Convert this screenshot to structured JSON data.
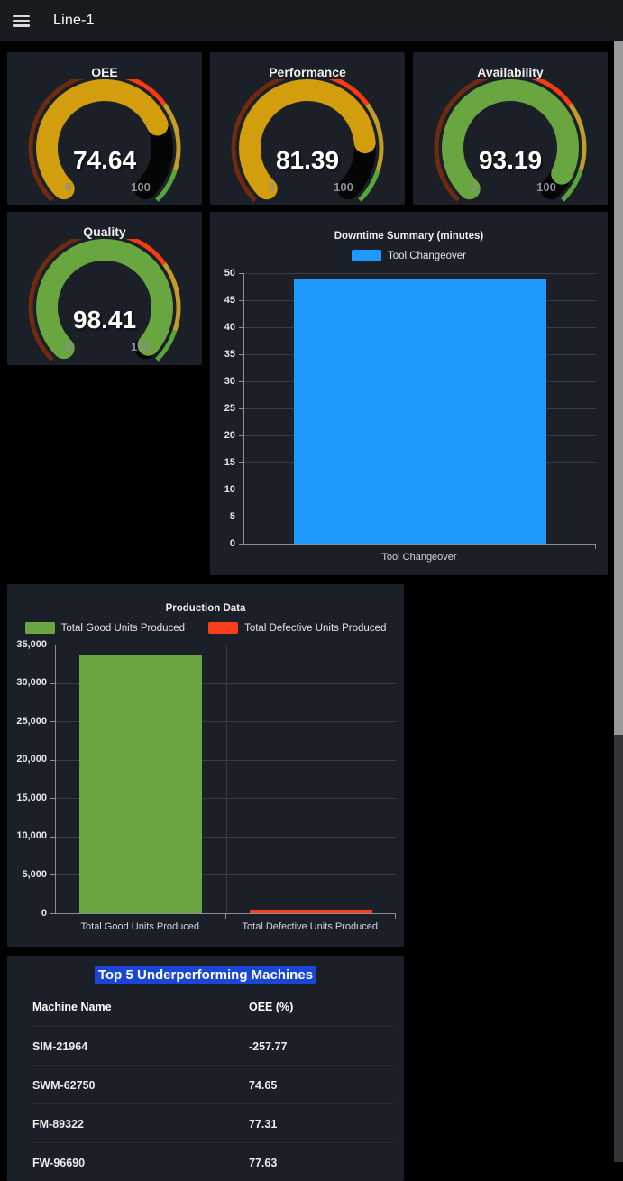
{
  "header": {
    "title": "Line-1"
  },
  "gauges": [
    {
      "title": "OEE",
      "value": 74.64,
      "min": 0,
      "max": 100,
      "fill": "#d29e0e"
    },
    {
      "title": "Performance",
      "value": 81.39,
      "min": 0,
      "max": 100,
      "fill": "#d29e0e"
    },
    {
      "title": "Availability",
      "value": 93.19,
      "min": 0,
      "max": 100,
      "fill": "#6aa640"
    },
    {
      "title": "Quality",
      "value": 98.41,
      "min": 0,
      "max": 100,
      "fill": "#6aa640"
    }
  ],
  "gauge_thresholds": [
    {
      "to": 50,
      "color": "#6f2a0f"
    },
    {
      "to": 70,
      "color": "#fc3a12"
    },
    {
      "to": 90,
      "color": "#c19d26"
    },
    {
      "to": 100,
      "color": "#57a639"
    }
  ],
  "chart_data": [
    {
      "type": "bar",
      "title": "Downtime Summary (minutes)",
      "legend": [
        {
          "label": "Tool Changeover",
          "color": "#1e9aff"
        }
      ],
      "categories": [
        "Tool Changeover"
      ],
      "values": [
        49
      ],
      "colors": [
        "#1e9aff"
      ],
      "xlabel": "",
      "ylabel": "",
      "ylim": [
        0,
        50
      ],
      "ytick_step": 5,
      "grid": true,
      "legend_position": "top"
    },
    {
      "type": "bar",
      "title": "Production Data",
      "legend": [
        {
          "label": "Total Good Units Produced",
          "color": "#6aa640"
        },
        {
          "label": "Total Defective Units Produced",
          "color": "#f93e1e"
        }
      ],
      "categories": [
        "Total Good Units Produced",
        "Total Defective Units Produced"
      ],
      "values": [
        33700,
        500
      ],
      "colors": [
        "#6aa640",
        "#f93e1e"
      ],
      "xlabel": "",
      "ylabel": "",
      "ylim": [
        0,
        35000
      ],
      "ytick_step": 5000,
      "grid": true,
      "legend_position": "top"
    }
  ],
  "table": {
    "title": "Top 5 Underperforming Machines",
    "title_highlight_color": "#1a46d6",
    "columns": [
      "Machine Name",
      "OEE (%)"
    ],
    "rows": [
      [
        "SIM-21964",
        "-257.77"
      ],
      [
        "SWM-62750",
        "74.65"
      ],
      [
        "FM-89322",
        "77.31"
      ],
      [
        "FW-96690",
        "77.63"
      ]
    ]
  }
}
